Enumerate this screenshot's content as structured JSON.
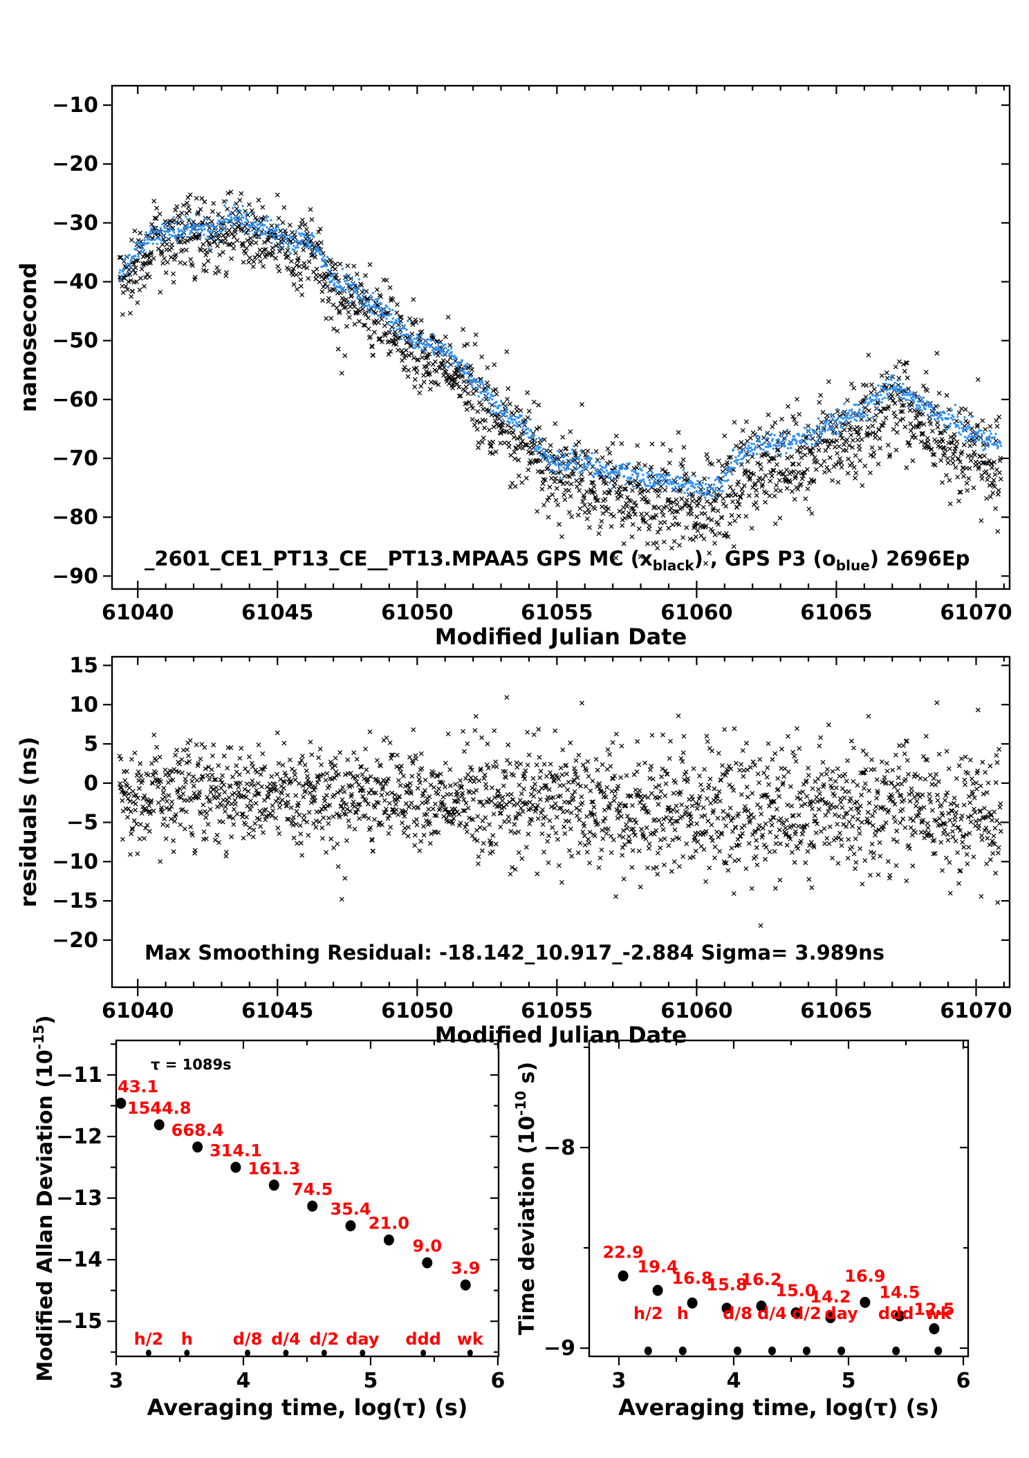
{
  "colors": {
    "marker_black": "#000000",
    "marker_blue": "#2E90F5",
    "label_red": "#FF0000",
    "axis": "#000000"
  },
  "chart_data": [
    {
      "id": "gps-time-comparison",
      "type": "scatter",
      "xlabel": "Modified Julian Date",
      "ylabel": "nanosecond",
      "xlim": [
        61039.08,
        61071.2
      ],
      "ylim": [
        -92.2,
        -6.7
      ],
      "xticks": [
        61040,
        61045,
        61050,
        61055,
        61060,
        61065,
        61070
      ],
      "xminor_step": 1,
      "yticks": [
        -10,
        -20,
        -30,
        -40,
        -50,
        -60,
        -70,
        -80,
        -90
      ],
      "annotation_segments": [
        {
          "t": "_2601_CE1_PT13_CE__PT13.MPAA5     GPS MC (x"
        },
        {
          "t": "black",
          "sub": true
        },
        {
          "t": ") ,  GPS P3 (o"
        },
        {
          "t": "blue",
          "sub": true
        },
        {
          "t": ")  2696Ep"
        }
      ],
      "series": [
        {
          "name": "GPS MC",
          "marker": "x",
          "color": "#000000"
        },
        {
          "name": "GPS P3",
          "marker": "dot",
          "color": "#2E90F5"
        }
      ],
      "x_data_range": [
        61039.35,
        61070.9
      ],
      "trend_anchors": [
        [
          61039.2,
          -40.5
        ],
        [
          61039.45,
          -38.5
        ],
        [
          61039.7,
          -36.5
        ],
        [
          61040.0,
          -34.5
        ],
        [
          61040.3,
          -33.5
        ],
        [
          61040.7,
          -32.0
        ],
        [
          61041.1,
          -31.2
        ],
        [
          61041.5,
          -31.5
        ],
        [
          61041.9,
          -30.6
        ],
        [
          61042.3,
          -30.8
        ],
        [
          61042.7,
          -31.6
        ],
        [
          61043.1,
          -29.8
        ],
        [
          61043.5,
          -28.9
        ],
        [
          61043.9,
          -30.0
        ],
        [
          61044.3,
          -31.0
        ],
        [
          61044.7,
          -31.2
        ],
        [
          61045.1,
          -31.8
        ],
        [
          61045.4,
          -33.3
        ],
        [
          61045.7,
          -33.6
        ],
        [
          61046.0,
          -32.6
        ],
        [
          61046.3,
          -33.2
        ],
        [
          61046.6,
          -36.0
        ],
        [
          61046.9,
          -39.0
        ],
        [
          61047.2,
          -41.0
        ],
        [
          61047.5,
          -40.2
        ],
        [
          61047.8,
          -41.5
        ],
        [
          61048.1,
          -43.2
        ],
        [
          61048.5,
          -44.0
        ],
        [
          61048.9,
          -45.5
        ],
        [
          61049.3,
          -47.5
        ],
        [
          61049.7,
          -49.5
        ],
        [
          61050.1,
          -50.3
        ],
        [
          61050.5,
          -50.6
        ],
        [
          61050.9,
          -51.5
        ],
        [
          61051.3,
          -53.0
        ],
        [
          61051.7,
          -55.0
        ],
        [
          61052.1,
          -57.5
        ],
        [
          61052.5,
          -59.5
        ],
        [
          61052.9,
          -61.5
        ],
        [
          61053.3,
          -63.2
        ],
        [
          61053.7,
          -64.3
        ],
        [
          61054.1,
          -66.0
        ],
        [
          61054.5,
          -69.0
        ],
        [
          61054.9,
          -70.8
        ],
        [
          61055.3,
          -70.6
        ],
        [
          61055.7,
          -70.6
        ],
        [
          61056.1,
          -71.5
        ],
        [
          61056.5,
          -72.0
        ],
        [
          61056.9,
          -72.8
        ],
        [
          61057.3,
          -72.2
        ],
        [
          61057.7,
          -72.6
        ],
        [
          61058.1,
          -73.8
        ],
        [
          61058.5,
          -73.6
        ],
        [
          61058.9,
          -73.8
        ],
        [
          61059.3,
          -74.2
        ],
        [
          61059.7,
          -74.0
        ],
        [
          61060.1,
          -75.0
        ],
        [
          61060.4,
          -75.4
        ],
        [
          61060.7,
          -74.8
        ],
        [
          61061.0,
          -73.0
        ],
        [
          61061.4,
          -70.5
        ],
        [
          61061.8,
          -68.8
        ],
        [
          61062.2,
          -68.0
        ],
        [
          61062.6,
          -67.6
        ],
        [
          61063.0,
          -67.8
        ],
        [
          61063.4,
          -66.8
        ],
        [
          61063.8,
          -67.0
        ],
        [
          61064.2,
          -65.8
        ],
        [
          61064.6,
          -64.6
        ],
        [
          61065.0,
          -64.0
        ],
        [
          61065.4,
          -63.0
        ],
        [
          61065.8,
          -62.2
        ],
        [
          61066.2,
          -60.8
        ],
        [
          61066.6,
          -58.8
        ],
        [
          61066.9,
          -57.6
        ],
        [
          61067.2,
          -58.2
        ],
        [
          61067.6,
          -59.4
        ],
        [
          61068.0,
          -60.8
        ],
        [
          61068.4,
          -61.8
        ],
        [
          61068.8,
          -63.0
        ],
        [
          61069.2,
          -64.0
        ],
        [
          61069.6,
          -65.0
        ],
        [
          61070.0,
          -65.8
        ],
        [
          61070.4,
          -66.6
        ],
        [
          61070.9,
          -67.4
        ]
      ],
      "bias_anchors": [
        [
          61039,
          -0.8
        ],
        [
          61044,
          -1.2
        ],
        [
          61048,
          -1.6
        ],
        [
          61052,
          -2.0
        ],
        [
          61055,
          -2.4
        ],
        [
          61058,
          -3.0
        ],
        [
          61061,
          -3.6
        ],
        [
          61063,
          -3.8
        ],
        [
          61066,
          -3.2
        ],
        [
          61068,
          -3.0
        ],
        [
          61071,
          -3.4
        ]
      ],
      "sigma_anchors": [
        [
          61039,
          3.0
        ],
        [
          61050,
          3.2
        ],
        [
          61055,
          3.8
        ],
        [
          61060,
          4.3
        ],
        [
          61065,
          4.1
        ],
        [
          61071,
          3.8
        ]
      ],
      "gen": {
        "seed": 20240601,
        "black_step": 0.016,
        "blue_step": 0.021,
        "blue_sigma": 0.95,
        "neg_outlier_p": 0.02,
        "pos_outlier_p": 0.01
      }
    },
    {
      "id": "residuals",
      "type": "scatter",
      "xlabel": "Modified Julian Date",
      "ylabel": "residuals (ns)",
      "xlim": [
        61039.08,
        61071.2
      ],
      "ylim": [
        -26.0,
        16.1
      ],
      "xticks": [
        61040,
        61045,
        61050,
        61055,
        61060,
        61065,
        61070
      ],
      "xminor_step": 1,
      "yticks": [
        15,
        10,
        5,
        0,
        -5,
        -10,
        -15,
        -20
      ],
      "annotation": "Max Smoothing Residual: -18.142_10.917_-2.884  Sigma= 3.989ns",
      "stats": {
        "max_smoothing_residual": "-18.142_10.917_-2.884",
        "sigma_ns": 3.989
      },
      "forced_points": [
        [
          61062.3,
          -18.142
        ],
        [
          61053.2,
          10.917
        ],
        [
          61047.3,
          -14.8
        ],
        [
          61055.9,
          10.2
        ]
      ]
    },
    {
      "id": "modified-allan-deviation",
      "type": "scatter",
      "xlabel": "Averaging time, log(τ) (s)",
      "ylabel_segments": [
        {
          "t": "Modified Allan Deviation (10"
        },
        {
          "t": "-15",
          "sup": true
        },
        {
          "t": ")"
        }
      ],
      "xlim": [
        3.0,
        6.006
      ],
      "ylim": [
        -15.57,
        -10.44
      ],
      "xticks": [
        3,
        4,
        5,
        6
      ],
      "xminor": [
        3.5,
        4.5,
        5.5
      ],
      "yticks": [
        -11,
        -12,
        -13,
        -14,
        -15
      ],
      "yminor": [
        -10.5,
        -11.5,
        -12.5,
        -13.5,
        -14.5,
        -15.5
      ],
      "tau_note": "τ = 1089s",
      "points": {
        "x": [
          3.037,
          3.338,
          3.639,
          3.94,
          4.241,
          4.542,
          4.843,
          5.144,
          5.445,
          5.746
        ],
        "y": [
          -11.46,
          -11.81,
          -12.17,
          -12.5,
          -12.79,
          -13.13,
          -13.45,
          -13.68,
          -14.05,
          -14.41
        ],
        "labels": [
          "43.1",
          "1544.8",
          "668.4",
          "314.1",
          "161.3",
          "74.5",
          "35.4",
          "21.0",
          "9.0",
          "3.9"
        ],
        "label_dy": [
          -16,
          -16,
          -16,
          -16,
          -16,
          -16,
          -16,
          -16,
          -16,
          -16
        ],
        "first_label_clipped": true
      },
      "time_markers": {
        "labels": [
          "h/2",
          "h",
          "d/8",
          "d/4",
          "d/2",
          "day",
          "ddd",
          "wk"
        ],
        "x": [
          3.255,
          3.556,
          4.033,
          4.334,
          4.635,
          4.937,
          5.414,
          5.782
        ]
      }
    },
    {
      "id": "time-deviation",
      "type": "scatter",
      "xlabel": "Averaging time, log(τ) (s)",
      "ylabel_segments": [
        {
          "t": "Time deviation (10"
        },
        {
          "t": "-10",
          "sup": true
        },
        {
          "t": " s)"
        }
      ],
      "xlim": [
        2.741,
        6.042
      ],
      "ylim": [
        -9.041,
        -7.466
      ],
      "xticks": [
        3,
        4,
        5,
        6
      ],
      "xminor": [
        3.5,
        4.5,
        5.5
      ],
      "yticks": [
        -8,
        -9
      ],
      "yminor": [
        -7.5,
        -8.5
      ],
      "points": {
        "x": [
          3.037,
          3.338,
          3.639,
          3.94,
          4.241,
          4.542,
          4.843,
          5.144,
          5.445,
          5.746
        ],
        "y": [
          -8.64,
          -8.712,
          -8.775,
          -8.801,
          -8.79,
          -8.824,
          -8.848,
          -8.772,
          -8.839,
          -8.903
        ],
        "labels": [
          "22.9",
          "19.4",
          "16.8",
          "15.8",
          "16.2",
          "15.0",
          "14.2",
          "16.9",
          "14.5",
          "12.5"
        ],
        "label_dy": [
          -26,
          -26,
          -28,
          -26,
          -30,
          -24,
          -22,
          -30,
          -26,
          -20
        ]
      },
      "time_markers": {
        "labels": [
          "h/2",
          "h",
          "d/8",
          "d/4",
          "d/2",
          "day",
          "ddd",
          "wk"
        ],
        "x": [
          3.255,
          3.556,
          4.033,
          4.334,
          4.635,
          4.937,
          5.414,
          5.782
        ]
      }
    }
  ]
}
